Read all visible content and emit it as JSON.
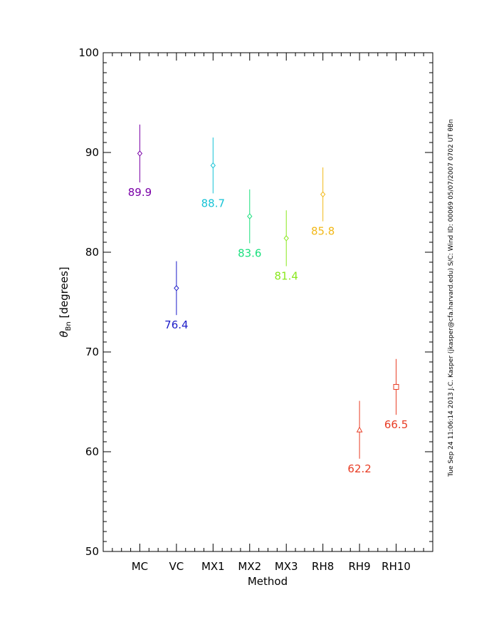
{
  "chart_data": {
    "type": "scatter",
    "xlabel": "Method",
    "ylabel_symbol": "θ",
    "ylabel_sub": "Bn",
    "ylabel_unit": "[degrees]",
    "ylim": [
      50,
      100
    ],
    "yticks": [
      50,
      60,
      70,
      80,
      90,
      100
    ],
    "ytick_labels": [
      "50",
      "60",
      "70",
      "80",
      "90",
      "100"
    ],
    "categories": [
      "MC",
      "VC",
      "MX1",
      "MX2",
      "MX3",
      "RH8",
      "RH9",
      "RH10"
    ],
    "values": [
      89.9,
      76.4,
      88.7,
      83.6,
      81.4,
      85.8,
      62.2,
      66.5
    ],
    "value_labels": [
      "89.9",
      "76.4",
      "88.7",
      "83.6",
      "81.4",
      "85.8",
      "62.2",
      "66.5"
    ],
    "errors": [
      2.9,
      2.7,
      2.8,
      2.7,
      2.8,
      2.7,
      2.9,
      2.8
    ],
    "markers": [
      "diamond",
      "diamond",
      "diamond",
      "diamond",
      "diamond",
      "diamond",
      "triangle",
      "square"
    ],
    "colors": [
      "#7a00a8",
      "#1c1cc8",
      "#16c3d6",
      "#19e07d",
      "#8ae81e",
      "#f2b818",
      "#e83c24",
      "#e83c24"
    ],
    "grid": false,
    "side_note": "Tue Sep 24 11:06:14 2013  J.C. Kasper (jkasper@cfa.harvard.edu)  S/C: Wind ID: 00069 05/07/2007  0702 UT θBn"
  }
}
